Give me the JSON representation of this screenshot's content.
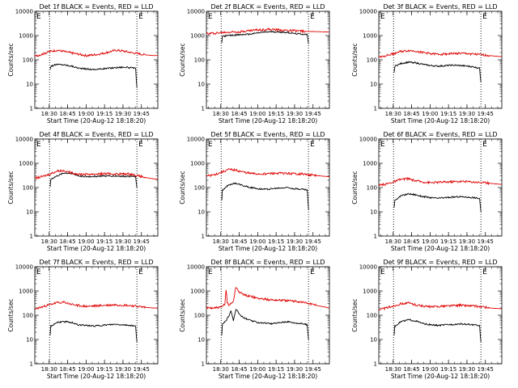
{
  "figure": {
    "line_colors": {
      "events": "#000000",
      "lld": "#e00000"
    }
  },
  "chart_data": [
    {
      "type": "line",
      "title": "Det 1f BLACK = Events, RED = LLD",
      "ylabel": "Counts/sec",
      "xlabel": "Start Time (20-Aug-12 18:18:20)",
      "x_ticks": [
        "18:30",
        "18:45",
        "19:00",
        "19:15",
        "19:30",
        "19:45"
      ],
      "y_ticks": [
        "1",
        "10",
        "100",
        "1000",
        "10000"
      ],
      "yscale": "log",
      "ylim": [
        1,
        10000
      ],
      "xlim_minutes": [
        0,
        100
      ],
      "vlines_minutes": [
        12,
        83
      ],
      "flags": [
        "E",
        "E"
      ],
      "series": [
        {
          "name": "Events",
          "color": "#000000",
          "x": [
            12.5,
            13,
            18,
            24,
            30,
            36,
            42,
            48,
            54,
            60,
            66,
            72,
            78,
            82,
            82.5,
            83
          ],
          "y": [
            40,
            55,
            65,
            62,
            55,
            45,
            42,
            40,
            42,
            45,
            48,
            50,
            47,
            45,
            15,
            7
          ]
        },
        {
          "name": "LLD",
          "color": "#e00000",
          "x": [
            0,
            6,
            12,
            18,
            24,
            30,
            36,
            42,
            48,
            54,
            60,
            66,
            72,
            78,
            84,
            90,
            96,
            100
          ],
          "y": [
            140,
            170,
            220,
            250,
            220,
            190,
            170,
            150,
            160,
            180,
            210,
            250,
            230,
            200,
            180,
            160,
            150,
            150
          ]
        }
      ]
    },
    {
      "type": "line",
      "title": "Det 2f BLACK = Events, RED = LLD",
      "ylabel": "Counts/sec",
      "xlabel": "Start Time (20-Aug-12 18:18:20)",
      "x_ticks": [
        "18:30",
        "18:45",
        "19:00",
        "19:15",
        "19:30",
        "19:45"
      ],
      "y_ticks": [
        "1",
        "10",
        "100",
        "1000",
        "10000"
      ],
      "yscale": "log",
      "ylim": [
        1,
        10000
      ],
      "xlim_minutes": [
        0,
        100
      ],
      "vlines_minutes": [
        12,
        83
      ],
      "flags": [
        "E",
        "E"
      ],
      "series": [
        {
          "name": "Events",
          "color": "#000000",
          "x": [
            12.5,
            13,
            18,
            24,
            30,
            36,
            42,
            48,
            54,
            60,
            66,
            72,
            78,
            82,
            82.5,
            83
          ],
          "y": [
            500,
            950,
            1000,
            1050,
            1100,
            1150,
            1300,
            1400,
            1450,
            1400,
            1350,
            1200,
            1150,
            1100,
            700,
            450
          ]
        },
        {
          "name": "LLD",
          "color": "#e00000",
          "x": [
            0,
            10,
            20,
            30,
            40,
            50,
            60,
            70,
            80,
            90,
            100
          ],
          "y": [
            1200,
            1300,
            1400,
            1500,
            1700,
            1800,
            1700,
            1600,
            1500,
            1450,
            1400
          ]
        }
      ]
    },
    {
      "type": "line",
      "title": "Det 3f BLACK = Events, RED = LLD",
      "ylabel": "Counts/sec",
      "xlabel": "Start Time (20-Aug-12 18:18:20)",
      "x_ticks": [
        "18:30",
        "18:45",
        "19:00",
        "19:15",
        "19:30",
        "19:45"
      ],
      "y_ticks": [
        "1",
        "10",
        "100",
        "1000",
        "10000"
      ],
      "yscale": "log",
      "ylim": [
        1,
        10000
      ],
      "xlim_minutes": [
        0,
        100
      ],
      "vlines_minutes": [
        12,
        83
      ],
      "flags": [
        "E",
        "E"
      ],
      "series": [
        {
          "name": "Events",
          "color": "#000000",
          "x": [
            12.5,
            13,
            18,
            24,
            30,
            36,
            42,
            48,
            54,
            60,
            66,
            72,
            78,
            82,
            82.5,
            83
          ],
          "y": [
            30,
            55,
            70,
            80,
            75,
            65,
            58,
            55,
            57,
            60,
            58,
            55,
            50,
            45,
            20,
            12
          ]
        },
        {
          "name": "LLD",
          "color": "#e00000",
          "x": [
            0,
            6,
            12,
            18,
            24,
            30,
            36,
            42,
            48,
            54,
            60,
            66,
            72,
            78,
            84,
            90,
            96,
            100
          ],
          "y": [
            130,
            150,
            180,
            220,
            240,
            230,
            200,
            180,
            170,
            175,
            180,
            185,
            180,
            170,
            160,
            150,
            140,
            135
          ]
        }
      ]
    },
    {
      "type": "line",
      "title": "Det 4f BLACK = Events, RED = LLD",
      "ylabel": "Counts/sec",
      "xlabel": "Start Time (20-Aug-12 18:18:20)",
      "x_ticks": [
        "18:30",
        "18:45",
        "19:00",
        "19:15",
        "19:30",
        "19:45"
      ],
      "y_ticks": [
        "1",
        "10",
        "100",
        "1000",
        "10000"
      ],
      "yscale": "log",
      "ylim": [
        1,
        10000
      ],
      "xlim_minutes": [
        0,
        100
      ],
      "vlines_minutes": [
        12,
        83
      ],
      "flags": [
        "E",
        "E"
      ],
      "series": [
        {
          "name": "Events",
          "color": "#000000",
          "x": [
            12.5,
            13,
            18,
            24,
            30,
            36,
            42,
            48,
            54,
            60,
            66,
            72,
            78,
            82,
            82.5,
            83
          ],
          "y": [
            110,
            220,
            300,
            400,
            380,
            300,
            280,
            290,
            300,
            300,
            300,
            290,
            290,
            280,
            150,
            100
          ]
        },
        {
          "name": "LLD",
          "color": "#e00000",
          "x": [
            0,
            6,
            12,
            18,
            24,
            30,
            36,
            42,
            48,
            54,
            60,
            66,
            72,
            78,
            84,
            90,
            96,
            100
          ],
          "y": [
            240,
            280,
            350,
            480,
            500,
            400,
            360,
            350,
            360,
            370,
            370,
            360,
            360,
            360,
            300,
            260,
            230,
            220
          ]
        }
      ]
    },
    {
      "type": "line",
      "title": "Det 5f BLACK = Events, RED = LLD",
      "ylabel": "Counts/sec",
      "xlabel": "Start Time (20-Aug-12 18:18:20)",
      "x_ticks": [
        "18:30",
        "18:45",
        "19:00",
        "19:15",
        "19:30",
        "19:45"
      ],
      "y_ticks": [
        "1",
        "10",
        "100",
        "1000",
        "10000"
      ],
      "yscale": "log",
      "ylim": [
        1,
        10000
      ],
      "xlim_minutes": [
        0,
        100
      ],
      "vlines_minutes": [
        12,
        83
      ],
      "flags": [
        "E",
        "E"
      ],
      "series": [
        {
          "name": "Events",
          "color": "#000000",
          "x": [
            12.5,
            13,
            18,
            24,
            30,
            36,
            42,
            48,
            54,
            60,
            66,
            72,
            78,
            82,
            82.5,
            83
          ],
          "y": [
            30,
            75,
            130,
            150,
            120,
            100,
            90,
            85,
            90,
            95,
            100,
            90,
            85,
            80,
            30,
            12
          ]
        },
        {
          "name": "LLD",
          "color": "#e00000",
          "x": [
            0,
            6,
            12,
            18,
            24,
            30,
            36,
            42,
            48,
            54,
            60,
            66,
            72,
            78,
            84,
            90,
            96,
            100
          ],
          "y": [
            300,
            330,
            420,
            550,
            520,
            430,
            380,
            360,
            370,
            380,
            390,
            380,
            370,
            360,
            330,
            310,
            290,
            280
          ]
        }
      ]
    },
    {
      "type": "line",
      "title": "Det 6f BLACK = Events, RED = LLD",
      "ylabel": "Counts/sec",
      "xlabel": "Start Time (20-Aug-12 18:18:20)",
      "x_ticks": [
        "18:30",
        "18:45",
        "19:00",
        "19:15",
        "19:30",
        "19:45"
      ],
      "y_ticks": [
        "1",
        "10",
        "100",
        "1000",
        "10000"
      ],
      "yscale": "log",
      "ylim": [
        1,
        10000
      ],
      "xlim_minutes": [
        0,
        100
      ],
      "vlines_minutes": [
        12,
        83
      ],
      "flags": [
        "E",
        "E"
      ],
      "series": [
        {
          "name": "Events",
          "color": "#000000",
          "x": [
            12.5,
            13,
            18,
            24,
            30,
            36,
            42,
            48,
            54,
            60,
            66,
            72,
            78,
            82,
            82.5,
            83
          ],
          "y": [
            15,
            30,
            45,
            55,
            50,
            42,
            38,
            36,
            38,
            40,
            42,
            40,
            38,
            35,
            18,
            10
          ]
        },
        {
          "name": "LLD",
          "color": "#e00000",
          "x": [
            0,
            6,
            12,
            18,
            24,
            30,
            36,
            42,
            48,
            54,
            60,
            66,
            72,
            78,
            84,
            90,
            96,
            100
          ],
          "y": [
            120,
            140,
            170,
            220,
            230,
            190,
            170,
            160,
            165,
            170,
            175,
            180,
            175,
            170,
            160,
            150,
            140,
            135
          ]
        }
      ]
    },
    {
      "type": "line",
      "title": "Det 7f BLACK = Events, RED = LLD",
      "ylabel": "Counts/sec",
      "xlabel": "Start Time (20-Aug-12 18:18:20)",
      "x_ticks": [
        "18:30",
        "18:45",
        "19:00",
        "19:15",
        "19:30",
        "19:45"
      ],
      "y_ticks": [
        "1",
        "10",
        "100",
        "1000",
        "10000"
      ],
      "yscale": "log",
      "ylim": [
        1,
        10000
      ],
      "xlim_minutes": [
        0,
        100
      ],
      "vlines_minutes": [
        12,
        83
      ],
      "flags": [
        "E",
        "E"
      ],
      "series": [
        {
          "name": "Events",
          "color": "#000000",
          "x": [
            12.5,
            13,
            18,
            24,
            30,
            36,
            42,
            48,
            54,
            60,
            66,
            72,
            78,
            82,
            82.5,
            83
          ],
          "y": [
            15,
            35,
            50,
            55,
            50,
            40,
            38,
            36,
            38,
            40,
            42,
            40,
            38,
            35,
            15,
            8
          ]
        },
        {
          "name": "LLD",
          "color": "#e00000",
          "x": [
            0,
            6,
            12,
            18,
            24,
            30,
            36,
            42,
            48,
            54,
            60,
            66,
            72,
            78,
            84,
            90,
            96,
            100
          ],
          "y": [
            180,
            220,
            270,
            330,
            340,
            280,
            250,
            230,
            240,
            250,
            260,
            270,
            260,
            250,
            230,
            210,
            200,
            195
          ]
        }
      ]
    },
    {
      "type": "line",
      "title": "Det 8f BLACK = Events, RED = LLD",
      "ylabel": "Counts/sec",
      "xlabel": "Start Time (20-Aug-12 18:18:20)",
      "x_ticks": [
        "18:30",
        "18:45",
        "19:00",
        "19:15",
        "19:30",
        "19:45"
      ],
      "y_ticks": [
        "1",
        "10",
        "100",
        "1000",
        "10000"
      ],
      "yscale": "log",
      "ylim": [
        1,
        10000
      ],
      "xlim_minutes": [
        0,
        100
      ],
      "vlines_minutes": [
        12,
        83
      ],
      "flags": [
        "E",
        "E"
      ],
      "series": [
        {
          "name": "Events",
          "color": "#000000",
          "x": [
            12.5,
            13,
            16,
            18,
            20,
            22,
            24,
            27,
            30,
            36,
            42,
            48,
            54,
            60,
            66,
            72,
            78,
            82,
            82.5,
            83
          ],
          "y": [
            15,
            45,
            60,
            90,
            150,
            60,
            180,
            110,
            80,
            60,
            50,
            48,
            45,
            50,
            55,
            48,
            45,
            40,
            18,
            10
          ]
        },
        {
          "name": "LLD",
          "color": "#e00000",
          "x": [
            0,
            6,
            12,
            15,
            16,
            17,
            18,
            20,
            22,
            24,
            26,
            30,
            36,
            42,
            48,
            54,
            60,
            66,
            72,
            78,
            84,
            90,
            96,
            100
          ],
          "y": [
            200,
            200,
            210,
            280,
            1200,
            350,
            260,
            300,
            400,
            1500,
            1000,
            700,
            600,
            500,
            450,
            430,
            420,
            400,
            380,
            350,
            300,
            250,
            220,
            200
          ]
        }
      ]
    },
    {
      "type": "line",
      "title": "Det 9f BLACK = Events, RED = LLD",
      "ylabel": "Counts/sec",
      "xlabel": "Start Time (20-Aug-12 18:18:20)",
      "x_ticks": [
        "18:30",
        "18:45",
        "19:00",
        "19:15",
        "19:30",
        "19:45"
      ],
      "y_ticks": [
        "1",
        "10",
        "100",
        "1000",
        "10000"
      ],
      "yscale": "log",
      "ylim": [
        1,
        10000
      ],
      "xlim_minutes": [
        0,
        100
      ],
      "vlines_minutes": [
        12,
        83
      ],
      "flags": [
        "E",
        "E"
      ],
      "series": [
        {
          "name": "Events",
          "color": "#000000",
          "x": [
            12.5,
            13,
            18,
            24,
            30,
            36,
            42,
            48,
            54,
            60,
            66,
            72,
            78,
            82,
            82.5,
            83
          ],
          "y": [
            15,
            35,
            55,
            65,
            58,
            45,
            40,
            38,
            40,
            42,
            44,
            42,
            40,
            38,
            15,
            8
          ]
        },
        {
          "name": "LLD",
          "color": "#e00000",
          "x": [
            0,
            6,
            12,
            18,
            24,
            30,
            36,
            42,
            48,
            54,
            60,
            66,
            72,
            78,
            84,
            90,
            96,
            100
          ],
          "y": [
            170,
            200,
            240,
            300,
            320,
            270,
            240,
            220,
            230,
            240,
            250,
            260,
            250,
            240,
            220,
            200,
            190,
            185
          ]
        }
      ]
    }
  ]
}
